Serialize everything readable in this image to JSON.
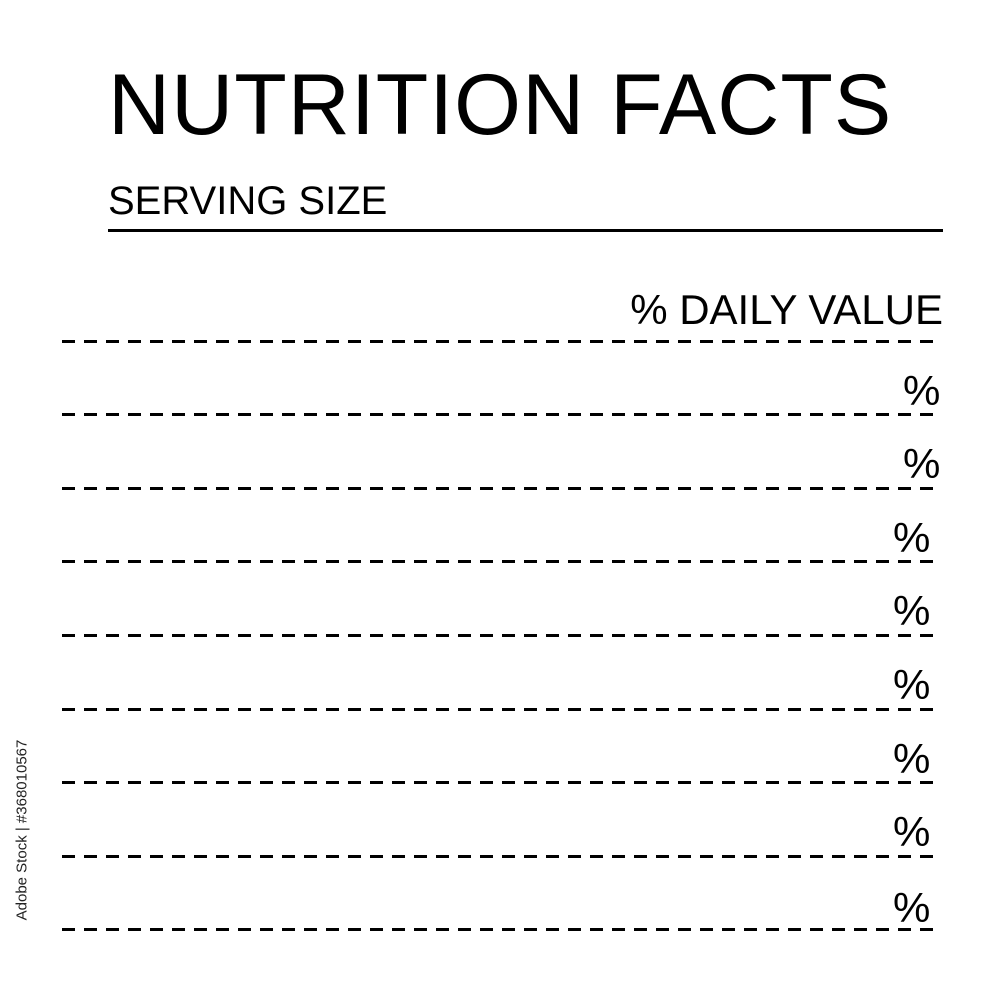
{
  "label": {
    "title": "NUTRITION FACTS",
    "serving_size": "SERVING SIZE",
    "daily_value_header": "% DAILY VALUE",
    "rows": [
      {
        "percent": "%"
      },
      {
        "percent": "%"
      },
      {
        "percent": "%"
      },
      {
        "percent": "%"
      },
      {
        "percent": "%"
      },
      {
        "percent": "%"
      },
      {
        "percent": "%"
      },
      {
        "percent": "%"
      }
    ]
  },
  "watermark": {
    "text": "Adobe Stock | #368010567"
  }
}
